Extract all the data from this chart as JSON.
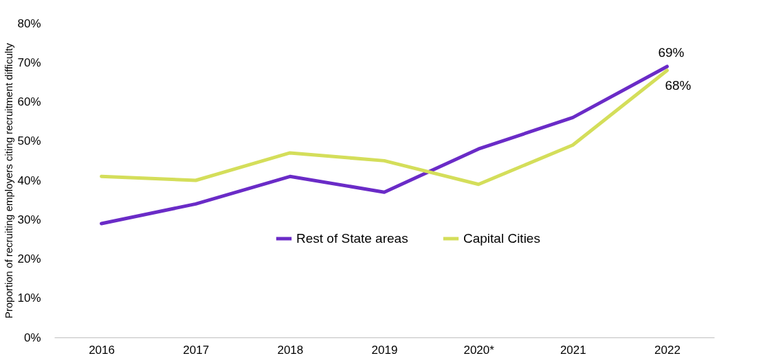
{
  "chart_data": {
    "type": "line",
    "ylabel": "Proportion of recruiting employers citing recruitment difficulty",
    "categories": [
      "2016",
      "2017",
      "2018",
      "2019",
      "2020*",
      "2021",
      "2022"
    ],
    "series": [
      {
        "name": "Rest of State areas",
        "color": "#6a2bc7",
        "values": [
          29,
          34,
          41,
          37,
          48,
          56,
          69
        ],
        "value_labels": [
          null,
          null,
          null,
          null,
          null,
          null,
          "69%"
        ]
      },
      {
        "name": "Capital Cities",
        "color": "#d4de5a",
        "values": [
          41,
          40,
          47,
          45,
          39,
          49,
          68
        ],
        "value_labels": [
          null,
          null,
          null,
          null,
          null,
          null,
          "68%"
        ]
      }
    ],
    "ylim": [
      0,
      80
    ],
    "yticks": [
      {
        "value": 0,
        "label": "0%"
      },
      {
        "value": 10,
        "label": "10%"
      },
      {
        "value": 20,
        "label": "20%"
      },
      {
        "value": 30,
        "label": "30%"
      },
      {
        "value": 40,
        "label": "40%"
      },
      {
        "value": 50,
        "label": "50%"
      },
      {
        "value": 60,
        "label": "60%"
      },
      {
        "value": 70,
        "label": "70%"
      },
      {
        "value": 80,
        "label": "80%"
      }
    ],
    "grid": false,
    "legend": "bottom",
    "marker": "none",
    "line_style": "solid"
  }
}
